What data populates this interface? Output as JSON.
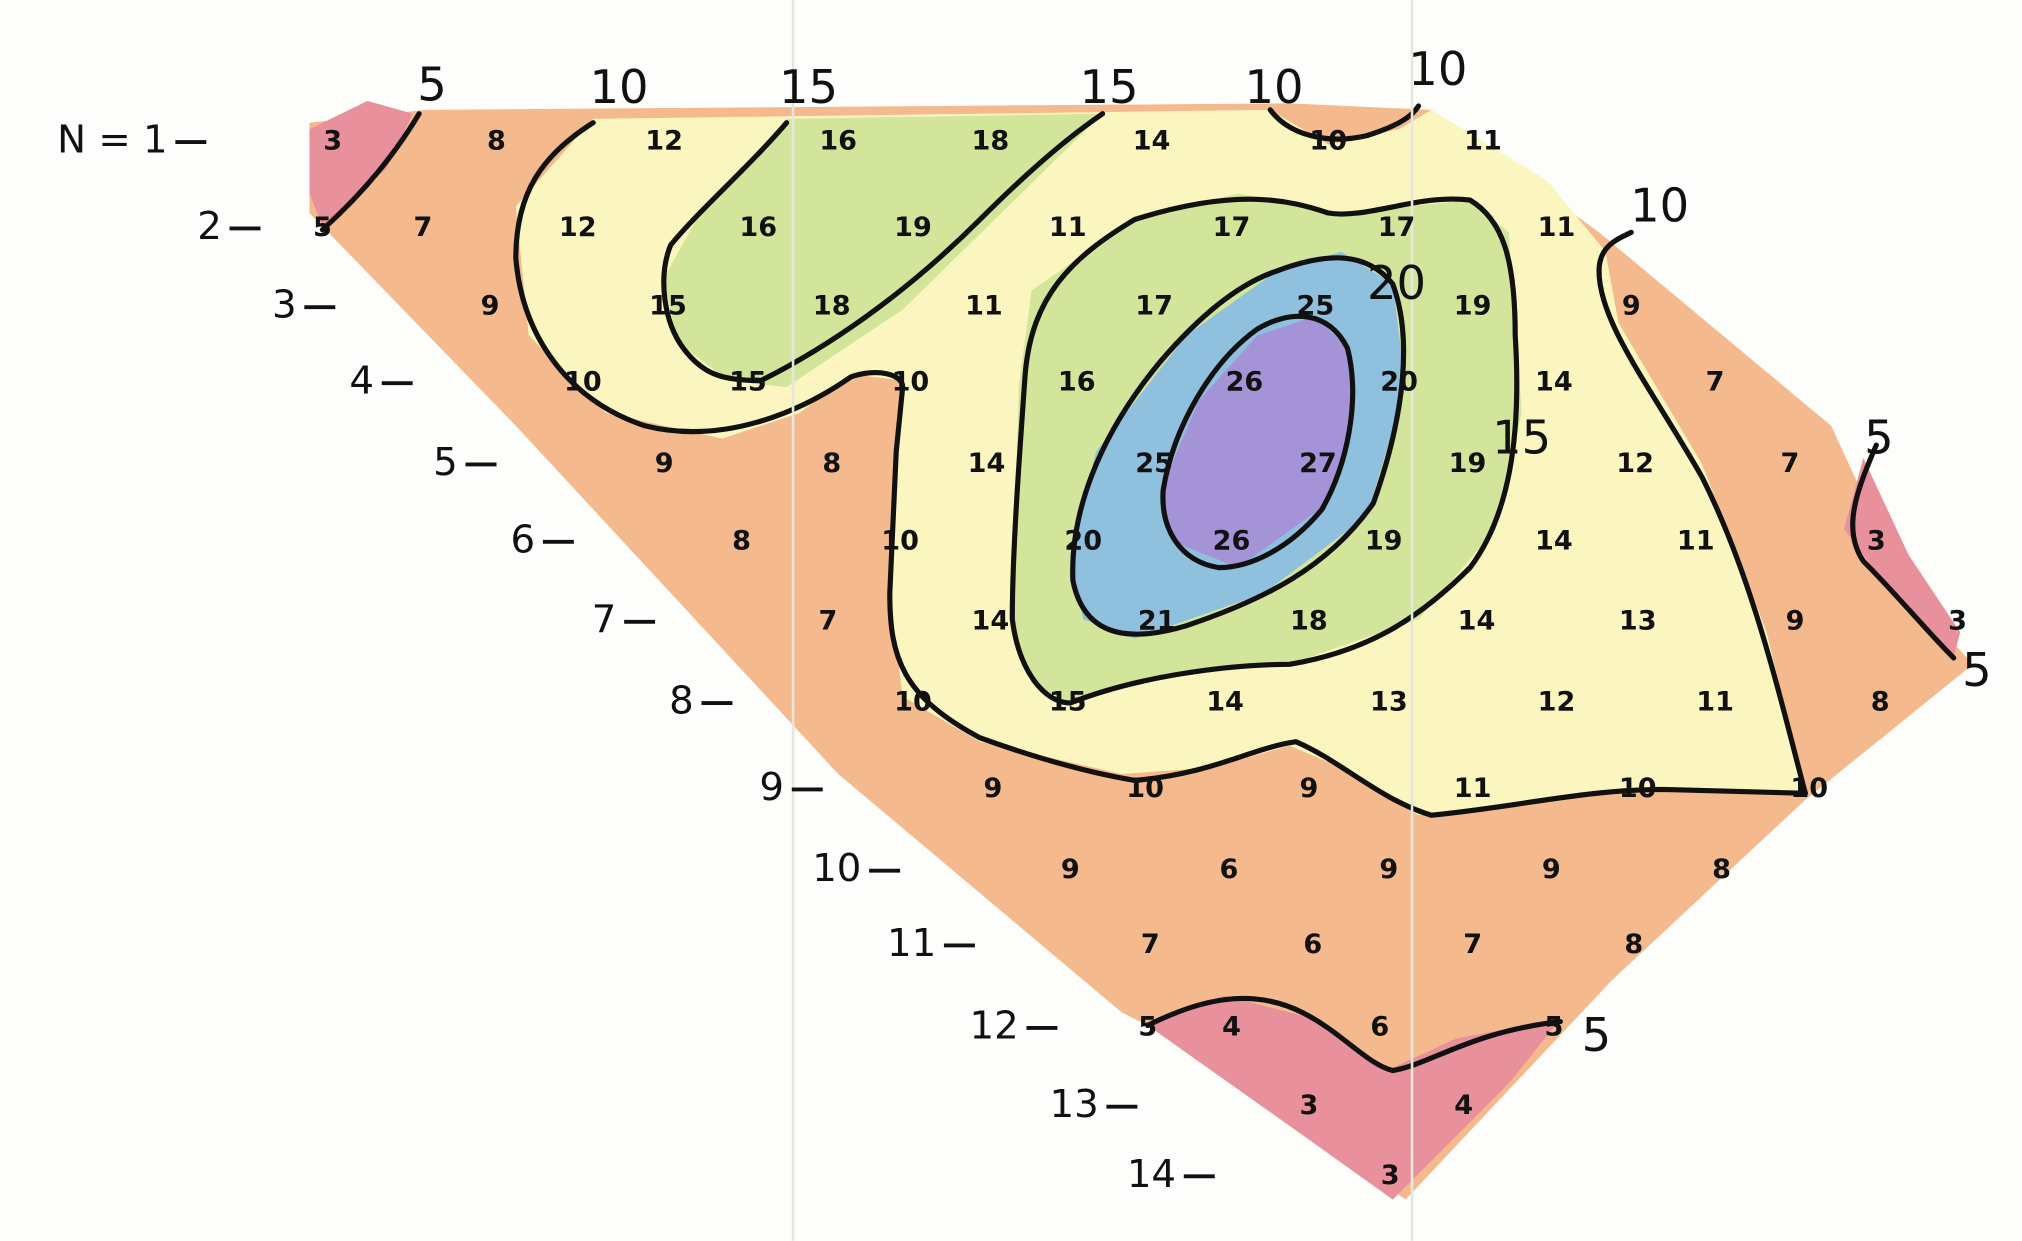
{
  "row_labels": [
    "N = 1",
    "2",
    "3",
    "4",
    "5",
    "6",
    "7",
    "8",
    "9",
    "10",
    "11",
    "12",
    "13",
    "14"
  ],
  "rows": [
    [
      3,
      8,
      12,
      16,
      18,
      14,
      10,
      11
    ],
    [
      5,
      7,
      12,
      16,
      19,
      11,
      17,
      17,
      11
    ],
    [
      9,
      15,
      18,
      11,
      17,
      25,
      19,
      9
    ],
    [
      10,
      15,
      10,
      16,
      26,
      20,
      14,
      7
    ],
    [
      9,
      8,
      14,
      25,
      27,
      19,
      12,
      7
    ],
    [
      8,
      10,
      20,
      26,
      19,
      14,
      11,
      3
    ],
    [
      7,
      14,
      21,
      18,
      14,
      13,
      9,
      3
    ],
    [
      10,
      15,
      14,
      13,
      12,
      11,
      8
    ],
    [
      9,
      10,
      9,
      11,
      10,
      10
    ],
    [
      9,
      6,
      9,
      9,
      8
    ],
    [
      7,
      6,
      7,
      8
    ],
    [
      5,
      4,
      6,
      5
    ],
    [
      3,
      4
    ],
    [
      3
    ]
  ],
  "contour_labels": [
    5,
    10,
    15,
    15,
    10,
    10,
    10,
    20,
    15,
    5,
    5,
    5
  ]
}
